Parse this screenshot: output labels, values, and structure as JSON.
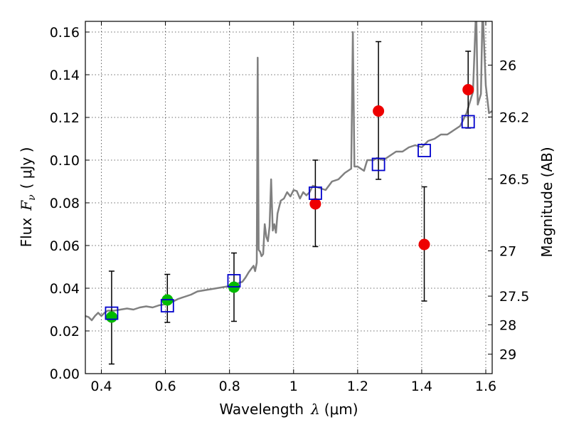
{
  "chart_data": {
    "type": "scatter",
    "xlabel_text": "Wavelength",
    "xlabel_symbol": "λ",
    "xlabel_unit": "(μm)",
    "ylabel_text": "Flux",
    "ylabel_symbol": "F",
    "ylabel_subscript": "ν",
    "ylabel_unit": "( μJy )",
    "y2label": "Magnitude (AB)",
    "xlim": [
      0.35,
      1.62
    ],
    "ylim": [
      0.0,
      0.165
    ],
    "x_ticks": [
      {
        "value": 0.4,
        "label": "0.4"
      },
      {
        "value": 0.6,
        "label": "0.6"
      },
      {
        "value": 0.8,
        "label": "0.8"
      },
      {
        "value": 1.0,
        "label": "1"
      },
      {
        "value": 1.2,
        "label": "1.2"
      },
      {
        "value": 1.4,
        "label": "1.4"
      },
      {
        "value": 1.6,
        "label": "1.6"
      }
    ],
    "y_ticks": [
      {
        "value": 0.0,
        "label": "0.00"
      },
      {
        "value": 0.02,
        "label": "0.02"
      },
      {
        "value": 0.04,
        "label": "0.04"
      },
      {
        "value": 0.06,
        "label": "0.06"
      },
      {
        "value": 0.08,
        "label": "0.08"
      },
      {
        "value": 0.1,
        "label": "0.10"
      },
      {
        "value": 0.12,
        "label": "0.12"
      },
      {
        "value": 0.14,
        "label": "0.14"
      },
      {
        "value": 0.16,
        "label": "0.16"
      }
    ],
    "y2_ticks": [
      {
        "flux": 0.1445,
        "label": "26"
      },
      {
        "flux": 0.1202,
        "label": "26.2"
      },
      {
        "flux": 0.0912,
        "label": "26.5"
      },
      {
        "flux": 0.0575,
        "label": "27"
      },
      {
        "flux": 0.0363,
        "label": "27.5"
      },
      {
        "flux": 0.0229,
        "label": "28"
      },
      {
        "flux": 0.0091,
        "label": "29"
      }
    ],
    "green_points": [
      {
        "x": 0.432,
        "y": 0.0265,
        "err_low": 0.0045,
        "err_high": 0.048
      },
      {
        "x": 0.606,
        "y": 0.0345,
        "err_low": 0.024,
        "err_high": 0.0465
      },
      {
        "x": 0.814,
        "y": 0.0405,
        "err_low": 0.0245,
        "err_high": 0.0565
      }
    ],
    "red_points": [
      {
        "x": 1.068,
        "y": 0.0795,
        "err_low": 0.0595,
        "err_high": 0.1
      },
      {
        "x": 1.265,
        "y": 0.123,
        "err_low": 0.091,
        "err_high": 0.1555
      },
      {
        "x": 1.408,
        "y": 0.0605,
        "err_low": 0.034,
        "err_high": 0.0875
      },
      {
        "x": 1.545,
        "y": 0.133,
        "err_low": 0.115,
        "err_high": 0.151
      }
    ],
    "model_points": [
      {
        "x": 0.432,
        "y": 0.0283
      },
      {
        "x": 0.606,
        "y": 0.0318
      },
      {
        "x": 0.814,
        "y": 0.0435
      },
      {
        "x": 1.068,
        "y": 0.0845
      },
      {
        "x": 1.265,
        "y": 0.098
      },
      {
        "x": 1.408,
        "y": 0.1045
      },
      {
        "x": 1.545,
        "y": 0.118
      }
    ],
    "spectrum": [
      [
        0.35,
        0.027
      ],
      [
        0.36,
        0.0265
      ],
      [
        0.37,
        0.025
      ],
      [
        0.38,
        0.027
      ],
      [
        0.39,
        0.0285
      ],
      [
        0.4,
        0.027
      ],
      [
        0.41,
        0.0285
      ],
      [
        0.42,
        0.0295
      ],
      [
        0.44,
        0.0295
      ],
      [
        0.46,
        0.03
      ],
      [
        0.48,
        0.0305
      ],
      [
        0.5,
        0.03
      ],
      [
        0.52,
        0.031
      ],
      [
        0.54,
        0.0315
      ],
      [
        0.56,
        0.031
      ],
      [
        0.58,
        0.032
      ],
      [
        0.6,
        0.0325
      ],
      [
        0.62,
        0.0335
      ],
      [
        0.64,
        0.035
      ],
      [
        0.66,
        0.036
      ],
      [
        0.68,
        0.037
      ],
      [
        0.7,
        0.0385
      ],
      [
        0.72,
        0.039
      ],
      [
        0.74,
        0.0395
      ],
      [
        0.76,
        0.04
      ],
      [
        0.78,
        0.0405
      ],
      [
        0.8,
        0.041
      ],
      [
        0.82,
        0.042
      ],
      [
        0.84,
        0.043
      ],
      [
        0.85,
        0.045
      ],
      [
        0.86,
        0.0475
      ],
      [
        0.87,
        0.0495
      ],
      [
        0.875,
        0.0505
      ],
      [
        0.88,
        0.048
      ],
      [
        0.885,
        0.052
      ],
      [
        0.888,
        0.148
      ],
      [
        0.891,
        0.058
      ],
      [
        0.896,
        0.057
      ],
      [
        0.9,
        0.055
      ],
      [
        0.905,
        0.056
      ],
      [
        0.91,
        0.07
      ],
      [
        0.915,
        0.064
      ],
      [
        0.92,
        0.062
      ],
      [
        0.925,
        0.069
      ],
      [
        0.93,
        0.091
      ],
      [
        0.935,
        0.067
      ],
      [
        0.94,
        0.07
      ],
      [
        0.945,
        0.066
      ],
      [
        0.95,
        0.075
      ],
      [
        0.96,
        0.081
      ],
      [
        0.97,
        0.082
      ],
      [
        0.98,
        0.085
      ],
      [
        0.99,
        0.083
      ],
      [
        1.0,
        0.086
      ],
      [
        1.01,
        0.0855
      ],
      [
        1.02,
        0.082
      ],
      [
        1.03,
        0.085
      ],
      [
        1.04,
        0.0835
      ],
      [
        1.05,
        0.085
      ],
      [
        1.06,
        0.088
      ],
      [
        1.08,
        0.087
      ],
      [
        1.1,
        0.086
      ],
      [
        1.12,
        0.09
      ],
      [
        1.14,
        0.091
      ],
      [
        1.16,
        0.094
      ],
      [
        1.17,
        0.095
      ],
      [
        1.18,
        0.096
      ],
      [
        1.185,
        0.16
      ],
      [
        1.19,
        0.097
      ],
      [
        1.2,
        0.097
      ],
      [
        1.22,
        0.095
      ],
      [
        1.23,
        0.1
      ],
      [
        1.25,
        0.1
      ],
      [
        1.26,
        0.101
      ],
      [
        1.28,
        0.1
      ],
      [
        1.3,
        0.102
      ],
      [
        1.32,
        0.104
      ],
      [
        1.34,
        0.104
      ],
      [
        1.36,
        0.106
      ],
      [
        1.38,
        0.107
      ],
      [
        1.4,
        0.106
      ],
      [
        1.42,
        0.109
      ],
      [
        1.44,
        0.11
      ],
      [
        1.46,
        0.112
      ],
      [
        1.48,
        0.112
      ],
      [
        1.5,
        0.114
      ],
      [
        1.52,
        0.116
      ],
      [
        1.53,
        0.119
      ],
      [
        1.54,
        0.122
      ],
      [
        1.56,
        0.132
      ],
      [
        1.57,
        0.172
      ],
      [
        1.575,
        0.126
      ],
      [
        1.585,
        0.131
      ],
      [
        1.59,
        0.172
      ],
      [
        1.6,
        0.135
      ],
      [
        1.61,
        0.122
      ],
      [
        1.62,
        0.123
      ]
    ]
  },
  "colors": {
    "spectrum": "#808080",
    "green_points": "#00bb00",
    "red_points": "#ee0000",
    "model_points": "#0000cc",
    "error_bars": "#000000"
  }
}
